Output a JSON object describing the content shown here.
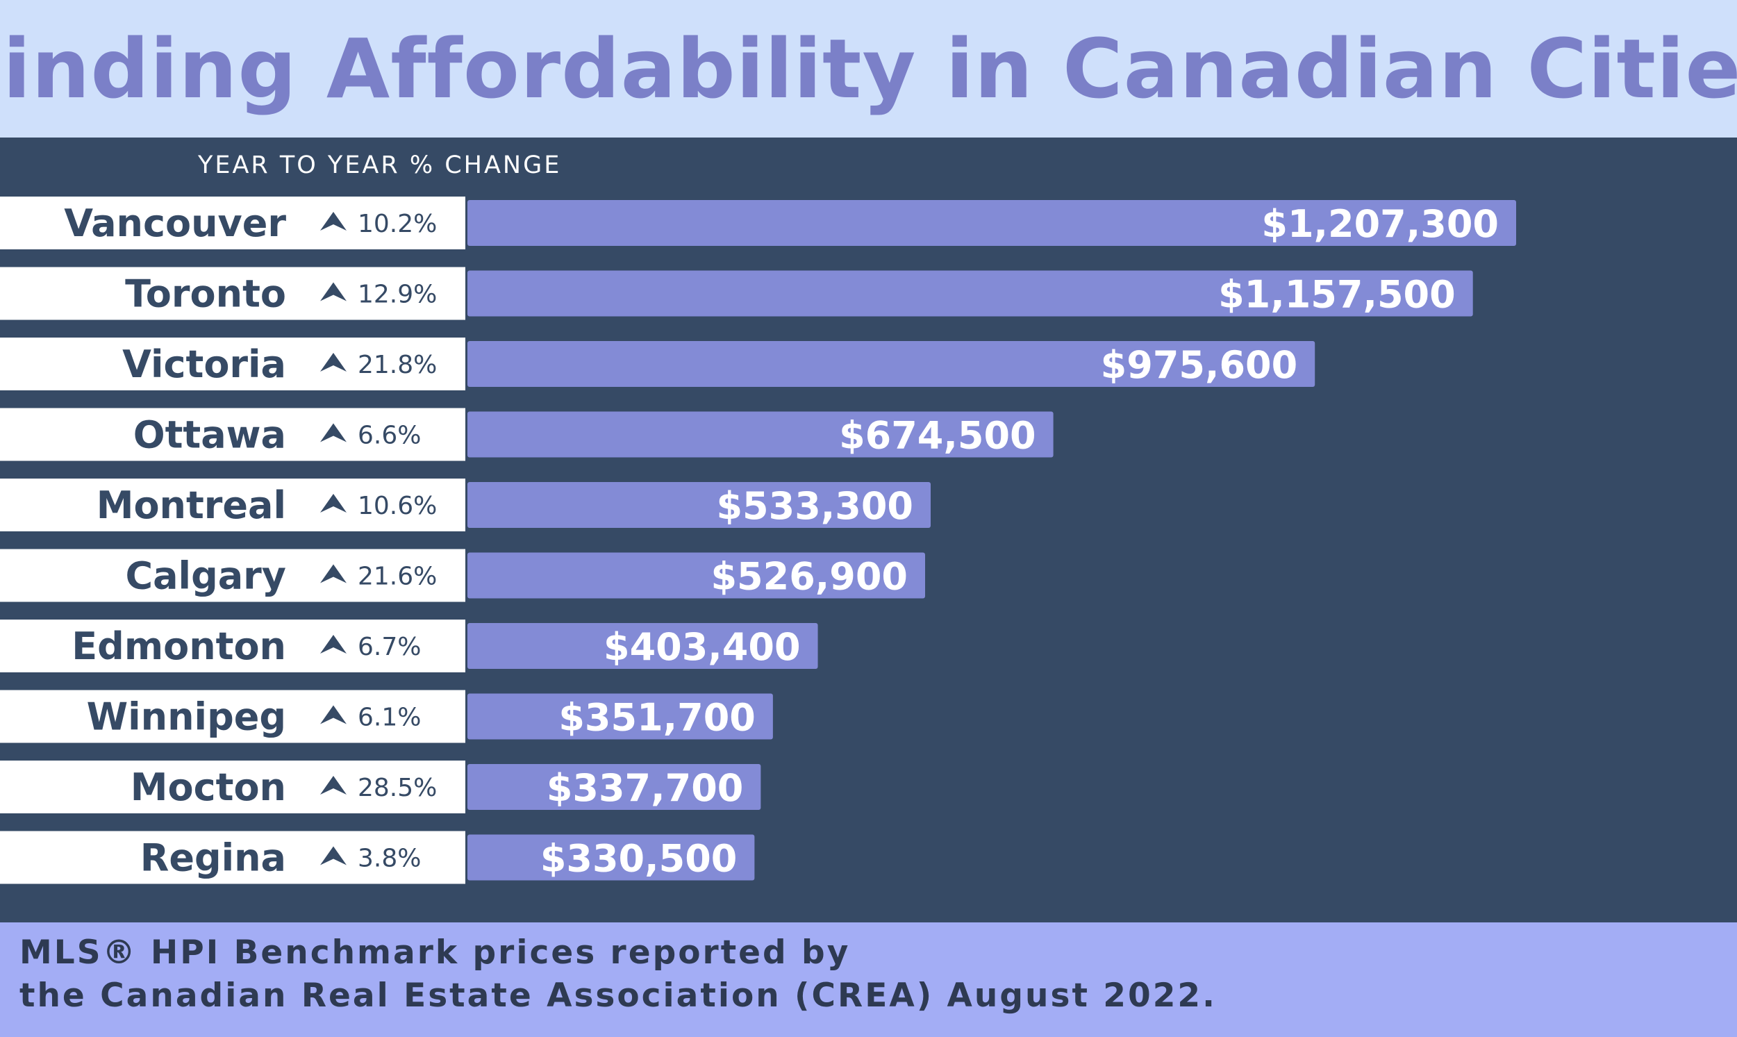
{
  "title": "Finding Affordability in Canadian Cities",
  "footnote": {
    "line1": "MLS® HPI Benchmark prices reported by",
    "line2": "the Canadian Real Estate Association (CREA) August 2022."
  },
  "colors": {
    "header_bg": "#cfe0fb",
    "title": "#7b80c8",
    "panel_bg": "#364a65",
    "bar": "#838bd6",
    "label_box": "#ffffff",
    "city_text": "#364a65",
    "footer_bg": "#a3adf5"
  },
  "icons": {
    "change": "up-arrow-icon"
  },
  "chart_data": {
    "type": "bar",
    "orientation": "horizontal",
    "title": "Finding Affordability in Canadian Cities",
    "change_header": "YEAR TO YEAR % CHANGE",
    "categories": [
      "Vancouver",
      "Toronto",
      "Victoria",
      "Ottawa",
      "Montreal",
      "Calgary",
      "Edmonton",
      "Winnipeg",
      "Mocton",
      "Regina"
    ],
    "changes": [
      "10.2%",
      "12.9%",
      "21.8%",
      "6.6%",
      "10.6%",
      "21.6%",
      "6.7%",
      "6.1%",
      "28.5%",
      "3.8%"
    ],
    "values": [
      1207300,
      1157500,
      975600,
      674500,
      533300,
      526900,
      403400,
      351700,
      337700,
      330500
    ],
    "value_labels": [
      "$1,207,300",
      "$1,157,500",
      "$975,600",
      "$674,500",
      "$533,300",
      "$526,900",
      "$403,400",
      "$351,700",
      "$337,700",
      "$330,500"
    ],
    "xlim": [
      0,
      1207300
    ],
    "grid": false
  }
}
